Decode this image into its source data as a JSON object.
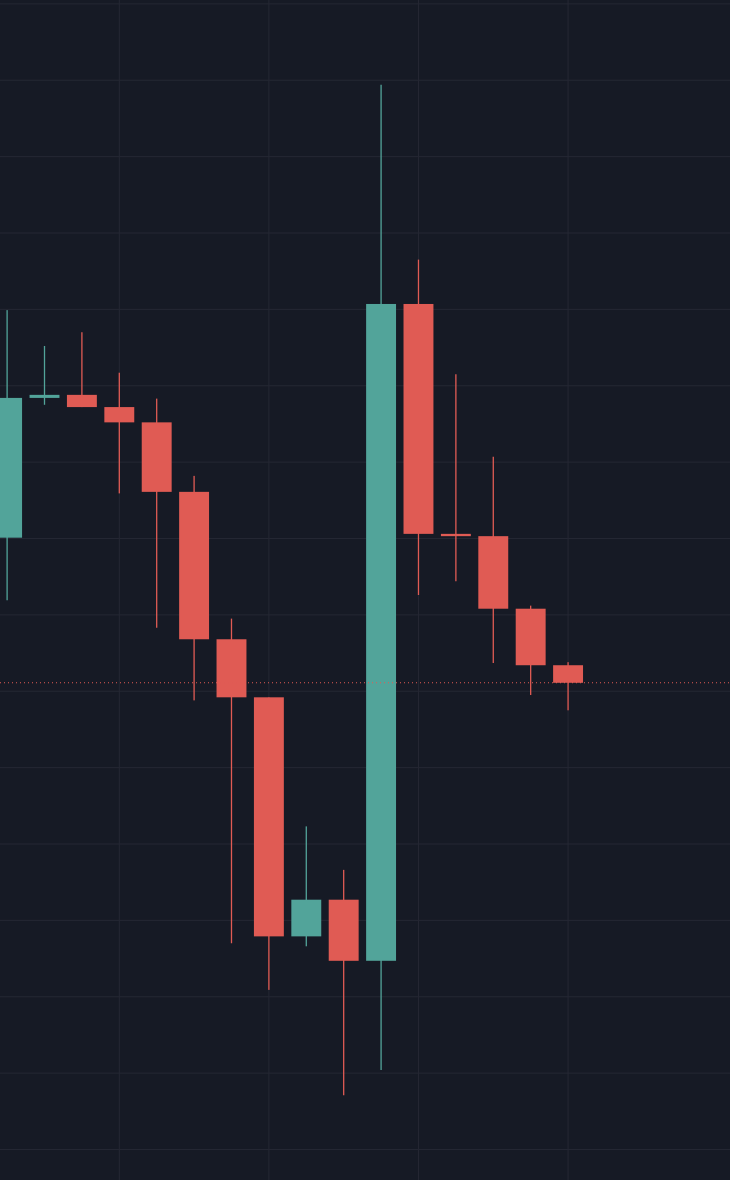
{
  "chart_data": {
    "type": "candlestick",
    "x": [
      0,
      1,
      2,
      3,
      4,
      5,
      6,
      7,
      8,
      9,
      10,
      11,
      12,
      13,
      14,
      15
    ],
    "open": [
      8.01,
      9.84,
      9.88,
      9.72,
      9.52,
      8.61,
      6.68,
      5.92,
      2.79,
      3.27,
      2.47,
      11.07,
      8.06,
      8.03,
      7.08,
      6.34
    ],
    "high": [
      10.99,
      10.52,
      10.7,
      10.17,
      9.83,
      8.82,
      6.95,
      5.92,
      4.23,
      3.66,
      13.94,
      11.65,
      10.15,
      9.07,
      7.12,
      6.38
    ],
    "low": [
      7.19,
      9.75,
      9.72,
      8.59,
      6.83,
      5.88,
      2.7,
      2.09,
      2.66,
      0.71,
      1.04,
      7.26,
      7.44,
      6.37,
      5.95,
      5.75
    ],
    "close": [
      9.84,
      9.88,
      9.72,
      9.52,
      8.61,
      6.68,
      5.92,
      2.79,
      3.27,
      2.47,
      11.07,
      8.06,
      8.03,
      7.08,
      6.34,
      6.11
    ],
    "up_color": "#52a49a",
    "down_color": "#e05b54",
    "xlim": [
      -0.19,
      19.33
    ],
    "ylim": [
      -0.4,
      15.05
    ],
    "xticks": [
      3,
      7,
      11,
      15
    ],
    "yticks": [
      0,
      1,
      2,
      3,
      4,
      5,
      6,
      7,
      8,
      9,
      10,
      11,
      12,
      13,
      14,
      15
    ],
    "grid": true,
    "price_line": 6.11,
    "price_line_color": "#e05b54"
  }
}
